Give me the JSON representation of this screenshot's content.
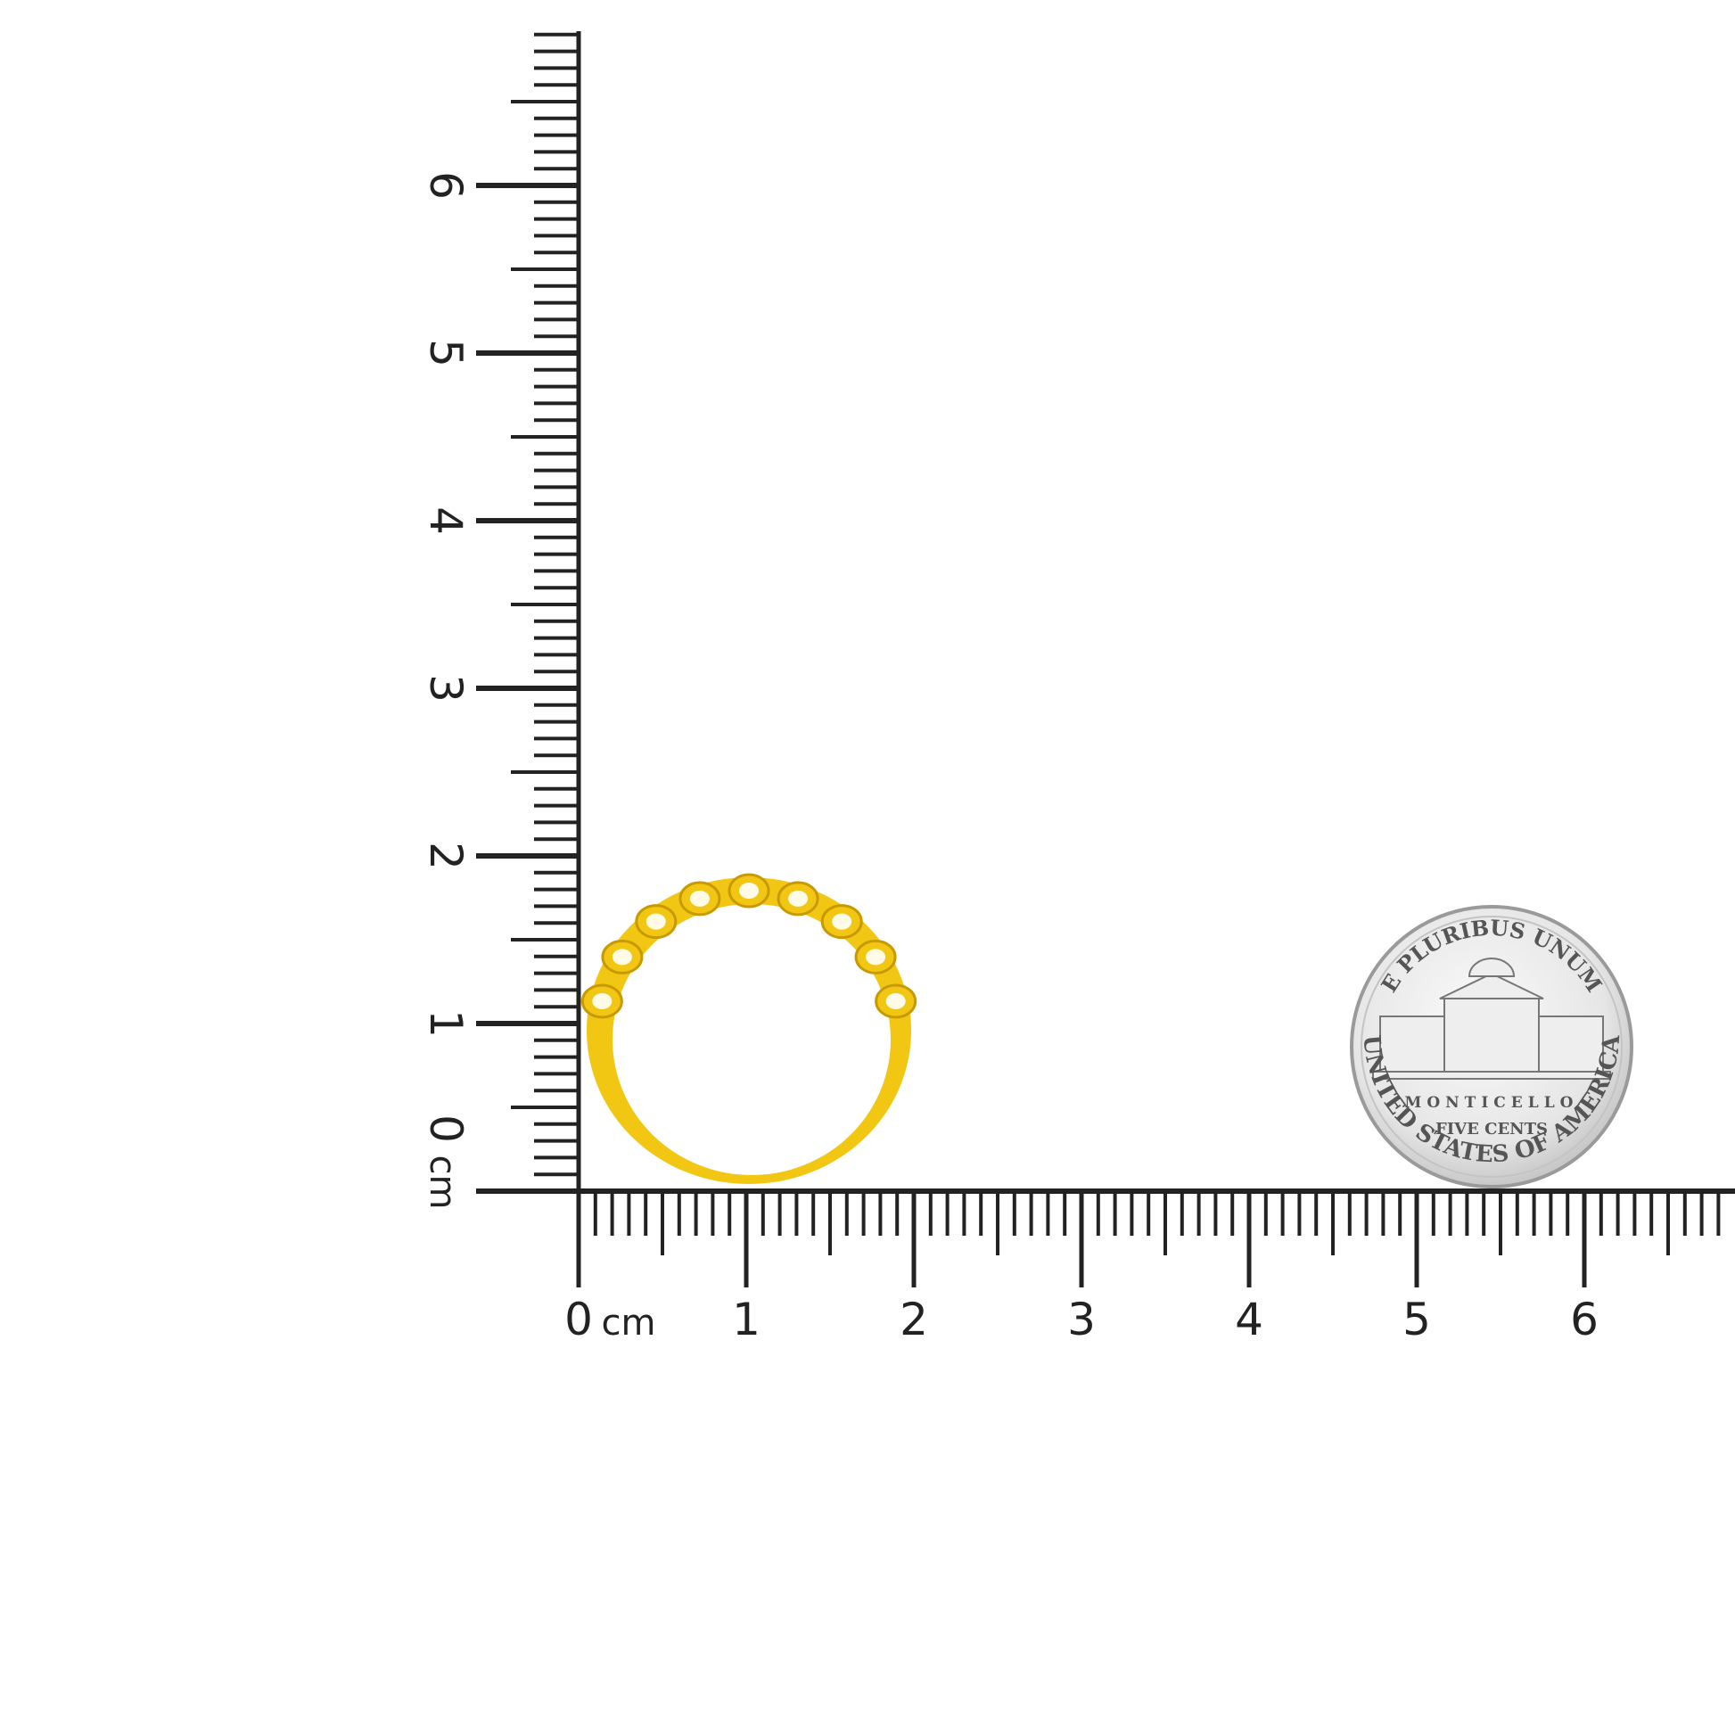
{
  "ruler": {
    "unit": "cm",
    "horizontal_labels": [
      "0",
      "1",
      "2",
      "3",
      "4",
      "5",
      "6"
    ],
    "vertical_labels": [
      "0",
      "1",
      "2",
      "3",
      "4",
      "5",
      "6"
    ],
    "color": "#222222"
  },
  "ring": {
    "metal_color": "#f2c714",
    "shadow_color": "#c99a00"
  },
  "coin": {
    "top_text": "E PLURIBUS UNUM",
    "building_text": "MONTICELLO",
    "value_text": "FIVE CENTS",
    "bottom_text": "UNITED STATES OF AMERICA",
    "color": "#d9d9d9"
  }
}
